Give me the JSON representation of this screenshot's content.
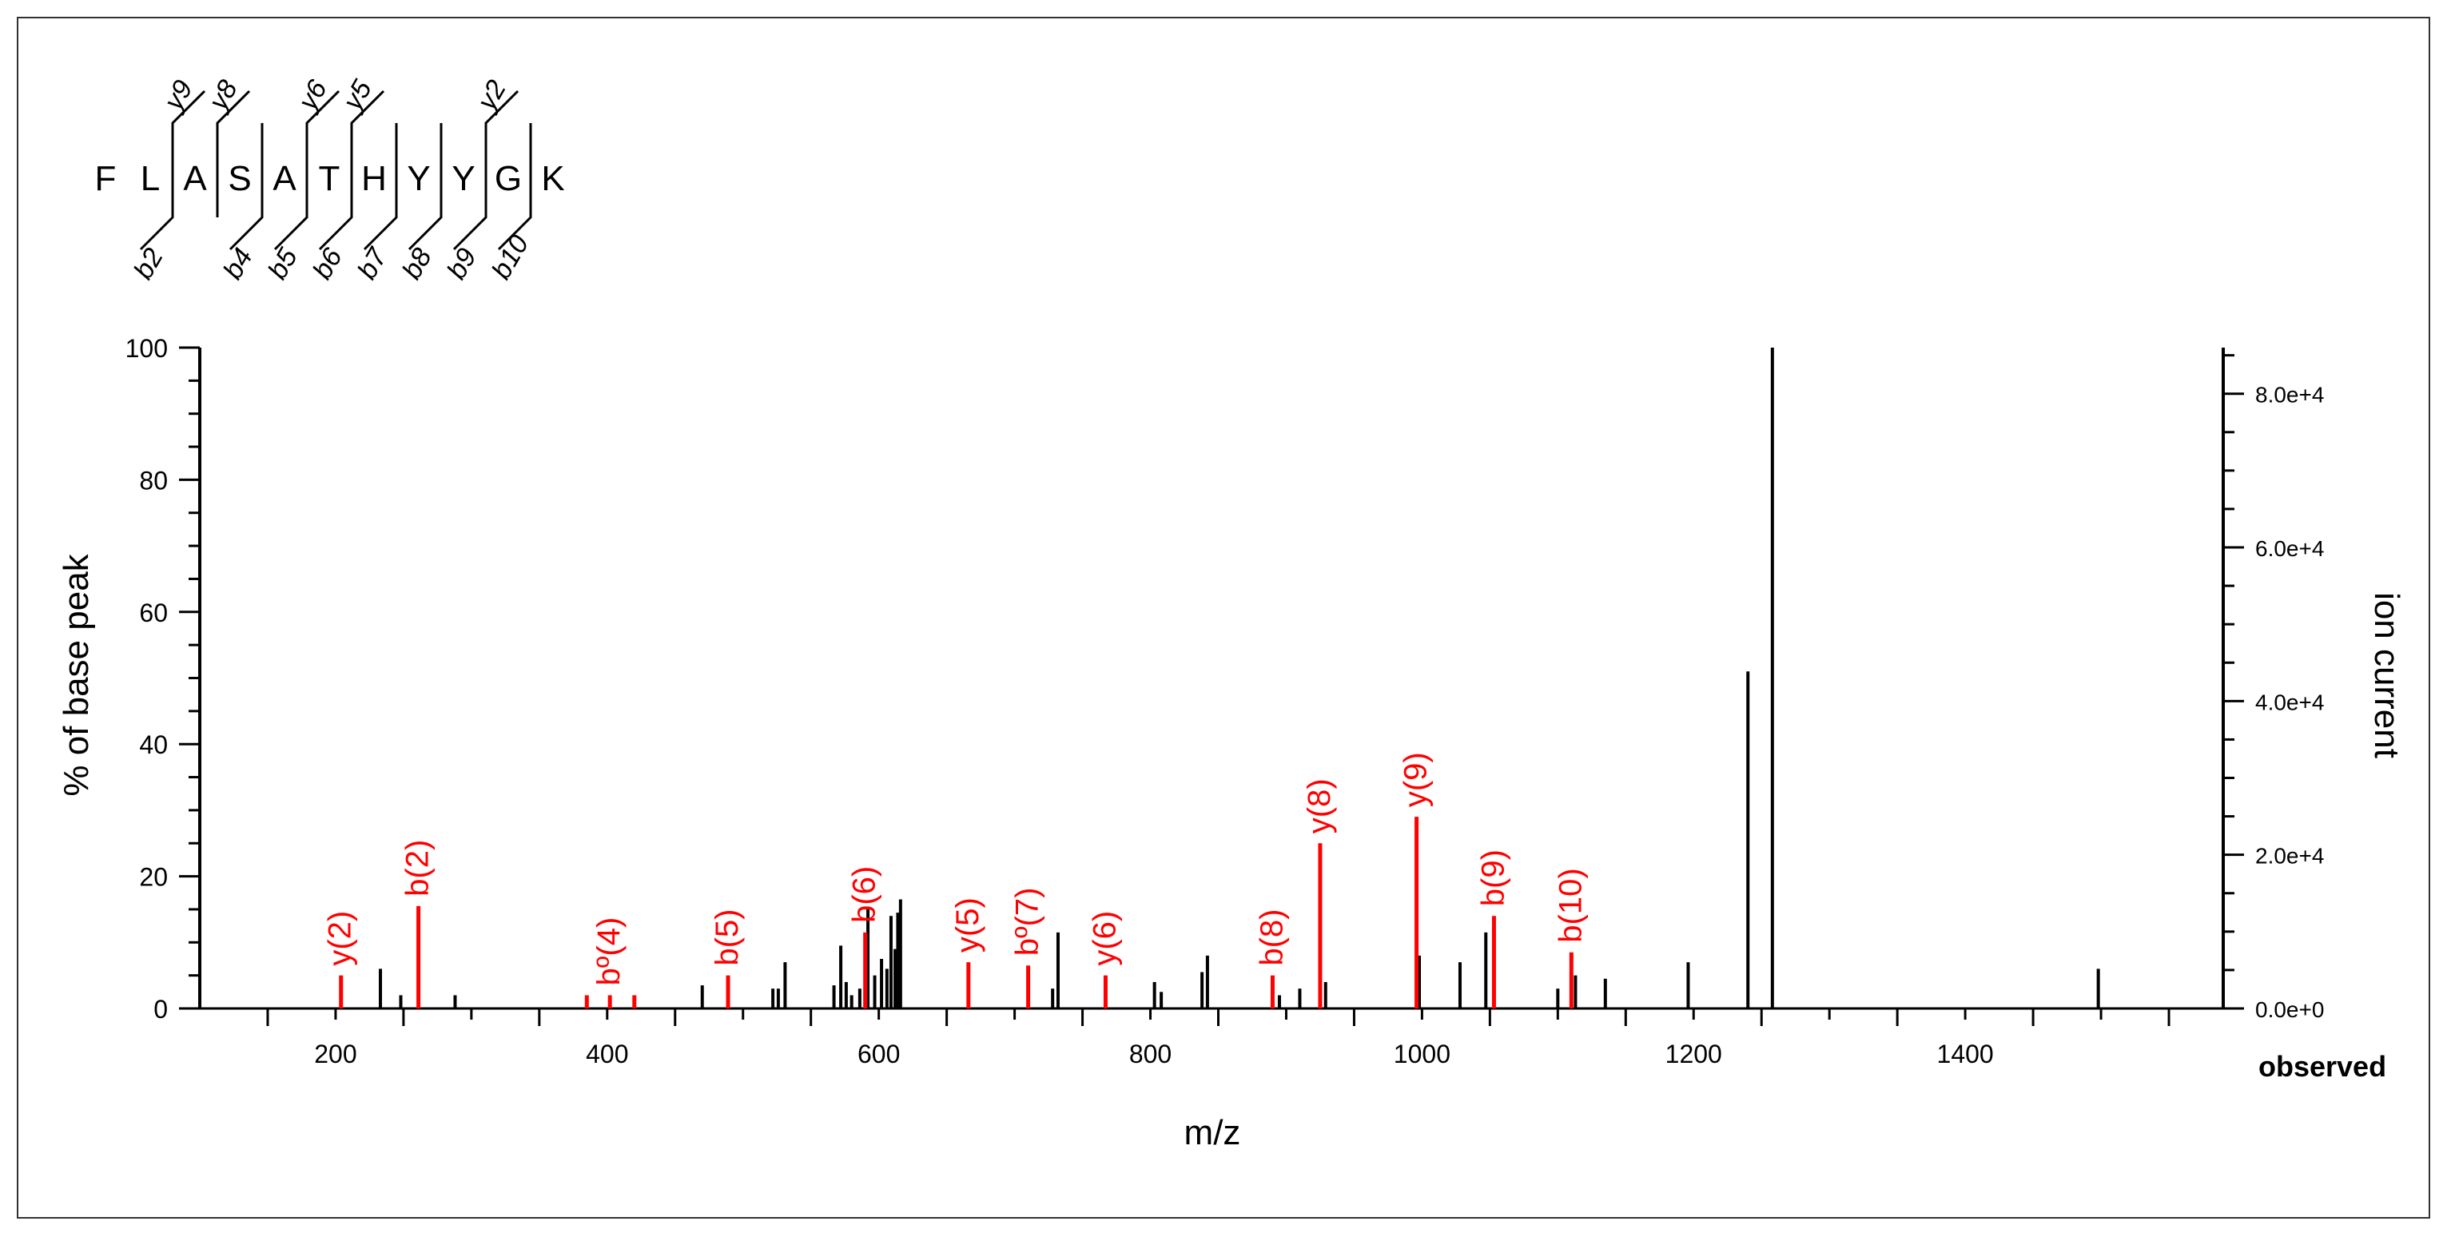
{
  "chart_data": {
    "type": "bar",
    "xlabel": "m/z",
    "ylabel": "% of base peak",
    "y2label": "ion current",
    "observed_label": "observed",
    "xlim": [
      100,
      1590
    ],
    "ylim": [
      0,
      100
    ],
    "x_ticks": [
      200,
      400,
      600,
      800,
      1000,
      1200,
      1400
    ],
    "y_ticks": [
      0,
      20,
      40,
      60,
      80,
      100
    ],
    "y2_range": [
      0,
      86000
    ],
    "y2_ticks": [
      {
        "value": 0,
        "label": "0.0e+0"
      },
      {
        "value": 20000,
        "label": "2.0e+4"
      },
      {
        "value": 40000,
        "label": "4.0e+4"
      },
      {
        "value": 60000,
        "label": "6.0e+4"
      },
      {
        "value": 80000,
        "label": "8.0e+4"
      }
    ],
    "peptide": {
      "residues": [
        "F",
        "L",
        "A",
        "S",
        "A",
        "T",
        "H",
        "Y",
        "Y",
        "G",
        "K"
      ],
      "y_ions": [
        {
          "after": 1,
          "label": "y9"
        },
        {
          "after": 2,
          "label": "y8"
        },
        {
          "after": 4,
          "label": "y6"
        },
        {
          "after": 5,
          "label": "y5"
        },
        {
          "after": 8,
          "label": "y2"
        }
      ],
      "b_ions": [
        {
          "after": 1,
          "label": "b2"
        },
        {
          "after": 3,
          "label": "b4"
        },
        {
          "after": 4,
          "label": "b5"
        },
        {
          "after": 5,
          "label": "b6"
        },
        {
          "after": 6,
          "label": "b7"
        },
        {
          "after": 7,
          "label": "b8"
        },
        {
          "after": 8,
          "label": "b9"
        },
        {
          "after": 9,
          "label": "b10"
        }
      ]
    },
    "matched_peaks": [
      {
        "mz": 204,
        "value": 5,
        "label": "y(2)"
      },
      {
        "mz": 261,
        "value": 15.5,
        "label": "b(2)"
      },
      {
        "mz": 385,
        "value": 2,
        "label": ""
      },
      {
        "mz": 402,
        "value": 2,
        "label": "bº(4)"
      },
      {
        "mz": 420,
        "value": 2,
        "label": ""
      },
      {
        "mz": 489,
        "value": 5,
        "label": "b(5)"
      },
      {
        "mz": 590,
        "value": 11.5,
        "label": "b(6)"
      },
      {
        "mz": 666,
        "value": 7,
        "label": "y(5)"
      },
      {
        "mz": 710,
        "value": 6.5,
        "label": "bº(7)"
      },
      {
        "mz": 767,
        "value": 5,
        "label": "y(6)"
      },
      {
        "mz": 890,
        "value": 5,
        "label": "b(8)"
      },
      {
        "mz": 925,
        "value": 25,
        "label": "y(8)"
      },
      {
        "mz": 996,
        "value": 29,
        "label": "y(9)"
      },
      {
        "mz": 1053,
        "value": 14,
        "label": "b(9)"
      },
      {
        "mz": 1110,
        "value": 8.5,
        "label": "b(10)"
      }
    ],
    "other_peaks": [
      {
        "mz": 233,
        "value": 6
      },
      {
        "mz": 248,
        "value": 2
      },
      {
        "mz": 288,
        "value": 2
      },
      {
        "mz": 470,
        "value": 3.5
      },
      {
        "mz": 522,
        "value": 3
      },
      {
        "mz": 526,
        "value": 3
      },
      {
        "mz": 531,
        "value": 7
      },
      {
        "mz": 567,
        "value": 3.5
      },
      {
        "mz": 572,
        "value": 9.5
      },
      {
        "mz": 576,
        "value": 4
      },
      {
        "mz": 580,
        "value": 2
      },
      {
        "mz": 586,
        "value": 3
      },
      {
        "mz": 592,
        "value": 15
      },
      {
        "mz": 597,
        "value": 5
      },
      {
        "mz": 602,
        "value": 7.5
      },
      {
        "mz": 606,
        "value": 6
      },
      {
        "mz": 609,
        "value": 14
      },
      {
        "mz": 612,
        "value": 9
      },
      {
        "mz": 614,
        "value": 14.5
      },
      {
        "mz": 616,
        "value": 16.5
      },
      {
        "mz": 728,
        "value": 3
      },
      {
        "mz": 732,
        "value": 11.5
      },
      {
        "mz": 803,
        "value": 4
      },
      {
        "mz": 808,
        "value": 2.5
      },
      {
        "mz": 838,
        "value": 5.5
      },
      {
        "mz": 842,
        "value": 8
      },
      {
        "mz": 895,
        "value": 2
      },
      {
        "mz": 910,
        "value": 3
      },
      {
        "mz": 929,
        "value": 4
      },
      {
        "mz": 998,
        "value": 8
      },
      {
        "mz": 1028,
        "value": 7
      },
      {
        "mz": 1047,
        "value": 11.5
      },
      {
        "mz": 1100,
        "value": 3
      },
      {
        "mz": 1113,
        "value": 5
      },
      {
        "mz": 1135,
        "value": 4.5
      },
      {
        "mz": 1196,
        "value": 7
      },
      {
        "mz": 1240,
        "value": 51
      },
      {
        "mz": 1258,
        "value": 100
      },
      {
        "mz": 1498,
        "value": 6
      }
    ],
    "colors": {
      "matched": "#ff0000",
      "other": "#000000",
      "axis": "#000000"
    }
  }
}
